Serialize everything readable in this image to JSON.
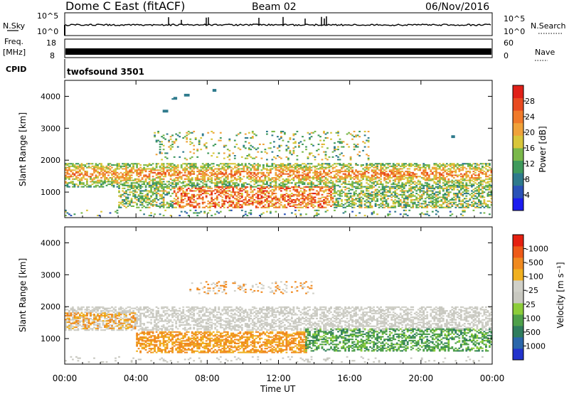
{
  "header": {
    "title": "Dome C East (fitACF)",
    "beam": "Beam 02",
    "date": "06/Nov/2016"
  },
  "top_panels": {
    "nsky_label": "N.Sky",
    "nsky_ticks": [
      "10^5",
      "10^0"
    ],
    "nsearch_label": "N.Search",
    "nsearch_ticks": [
      "10^5",
      "10^0"
    ],
    "freq_label": "Freq.",
    "freq_unit": "[MHz]",
    "freq_ticks": [
      "18",
      "8"
    ],
    "nave_label": "Nave",
    "nave_ticks": [
      "60",
      "0"
    ],
    "cpid_label": "CPID",
    "cpid_text": "twofsound 3501"
  },
  "chart_data": [
    {
      "type": "heatmap",
      "name": "power",
      "ylabel": "Slant Range [km]",
      "ylim": [
        200,
        4500
      ],
      "yticks": [
        "1000",
        "2000",
        "3000",
        "4000"
      ],
      "xlim": [
        0,
        24
      ],
      "colorbar": {
        "label": "Power [dB]",
        "ticks": [
          "4",
          "8",
          "12",
          "16",
          "20",
          "24",
          "28"
        ],
        "colors": [
          "#1c1cf0",
          "#2a52b8",
          "#2e7a8c",
          "#3f9a5c",
          "#7ab84a",
          "#d8c63a",
          "#f0a23a",
          "#f07a2a",
          "#e84a20",
          "#e02018"
        ]
      }
    },
    {
      "type": "heatmap",
      "name": "velocity",
      "ylabel": "Slant Range [km]",
      "ylim": [
        200,
        4500
      ],
      "yticks": [
        "1000",
        "2000",
        "3000",
        "4000"
      ],
      "xlim": [
        0,
        24
      ],
      "xticks": [
        "00:00",
        "04:00",
        "08:00",
        "12:00",
        "16:00",
        "20:00",
        "00:00"
      ],
      "xlabel": "Time UT",
      "colorbar": {
        "label": "Velocity [m s⁻¹]",
        "ticks": [
          "1000",
          "500",
          "100",
          "25",
          "-25",
          "-100",
          "-500",
          "-1000"
        ],
        "colors": [
          "#2233cc",
          "#2a66aa",
          "#2f7d5e",
          "#4ea04a",
          "#8ccd3a",
          "#c8c8c0",
          "#d0d0c8",
          "#f0b020",
          "#f08a20",
          "#ee5a18",
          "#e52010"
        ]
      }
    }
  ]
}
